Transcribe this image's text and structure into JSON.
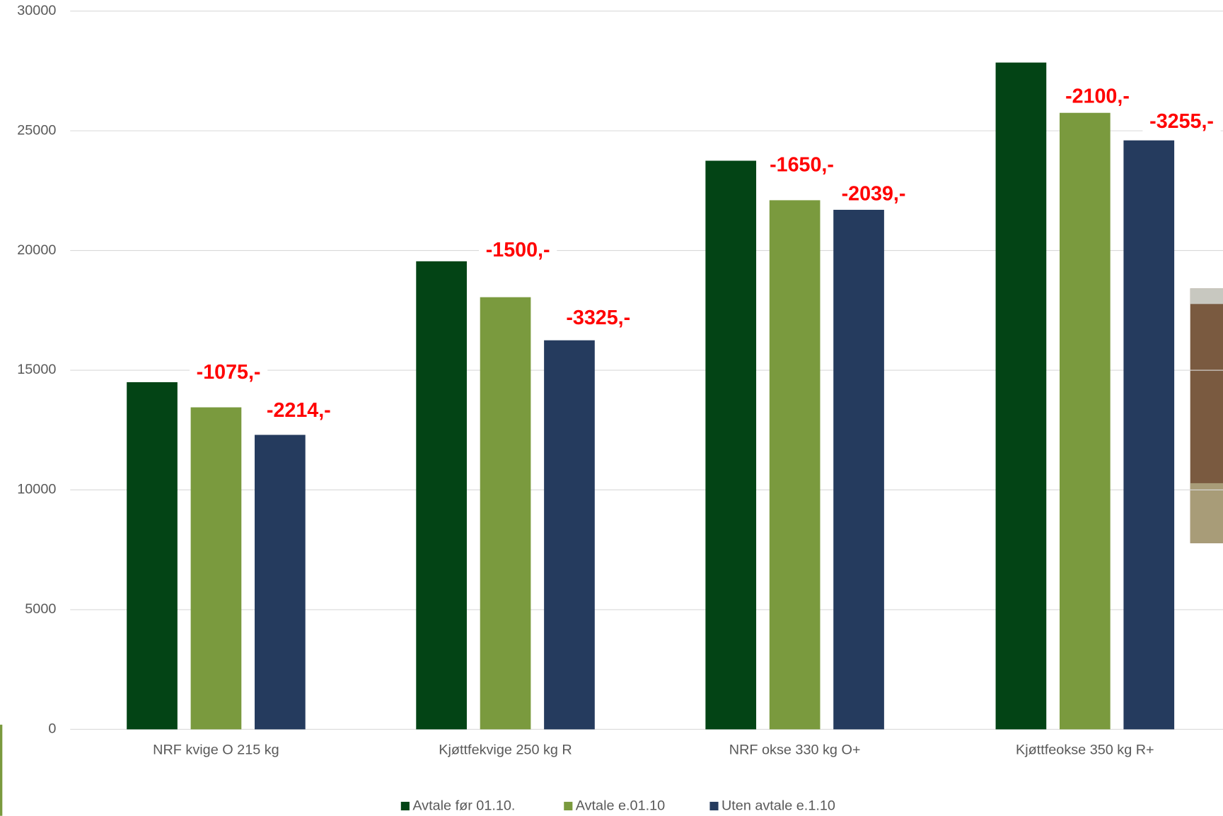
{
  "chart_data": {
    "type": "bar",
    "categories": [
      "NRF kvige  O 215 kg",
      "Kjøttfekvige 250 kg R",
      "NRF okse 330 kg O+",
      "Kjøttfeokse 350 kg R+"
    ],
    "series": [
      {
        "name": "Avtale før 01.10.",
        "color": "#034415",
        "values": [
          14500,
          19550,
          23750,
          27850
        ]
      },
      {
        "name": "Avtale e.01.10",
        "color": "#7a9a3e",
        "values": [
          13450,
          18050,
          22100,
          25750
        ]
      },
      {
        "name": "Uten avtale e.1.10",
        "color": "#253b5e",
        "values": [
          12300,
          16250,
          21700,
          24600
        ]
      }
    ],
    "annotations": [
      "-1075,-",
      "-2214,-",
      "-1500,-",
      "-3325,-",
      "-1650,-",
      "-2039,-",
      "-2100,-",
      "-3255,-"
    ],
    "ylim": [
      0,
      30000
    ],
    "yticks": [
      0,
      5000,
      10000,
      15000,
      20000,
      25000,
      30000
    ],
    "grid": true
  }
}
